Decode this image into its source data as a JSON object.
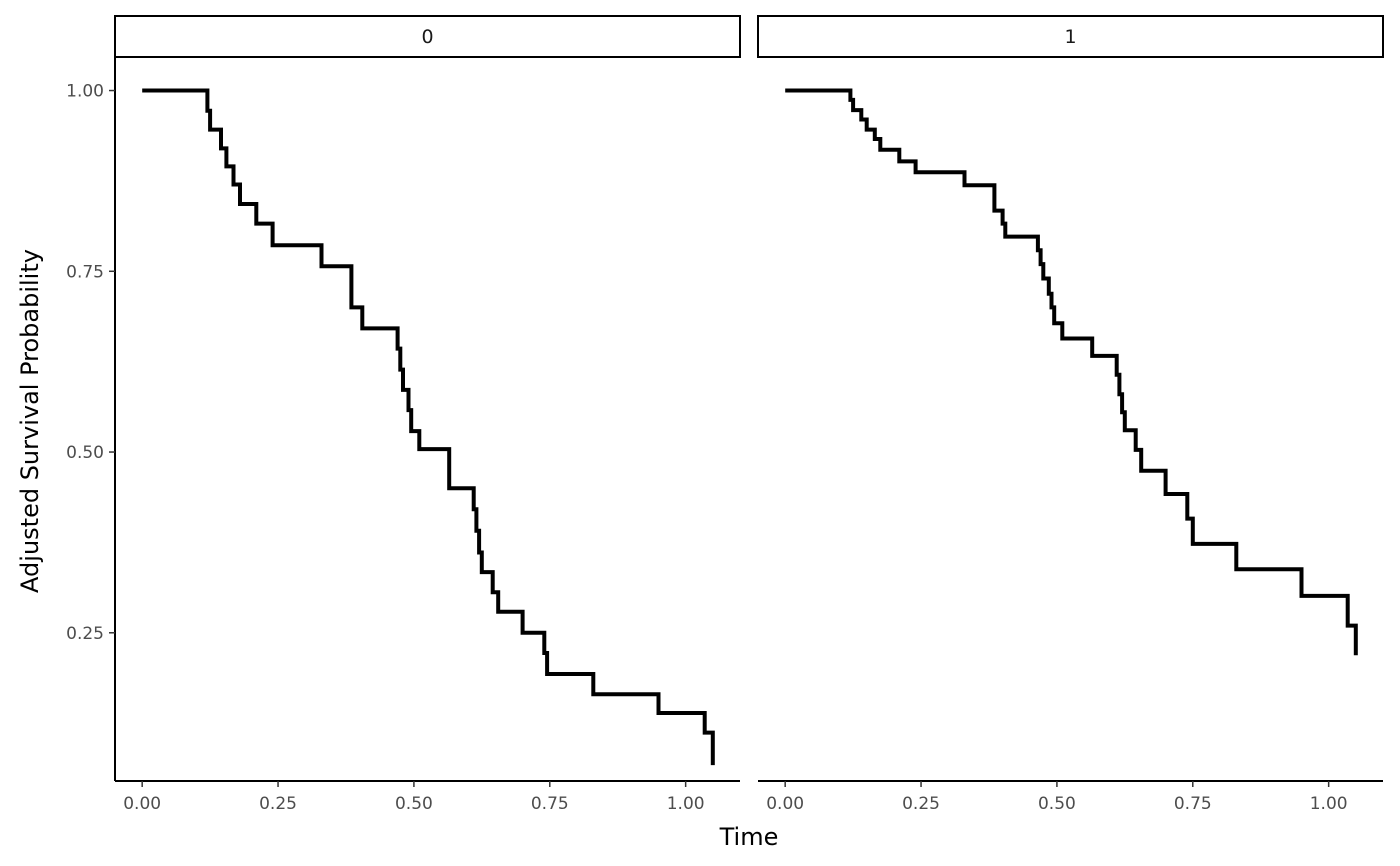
{
  "chart_data": {
    "type": "line",
    "step": true,
    "xlabel": "Time",
    "ylabel": "Adjusted Survival Probability",
    "xlim": [
      -0.05,
      1.1
    ],
    "ylim": [
      0.045,
      1.045
    ],
    "x_ticks": [
      0.0,
      0.25,
      0.5,
      0.75,
      1.0
    ],
    "x_tick_labels": [
      "0.00",
      "0.25",
      "0.50",
      "0.75",
      "1.00"
    ],
    "y_ticks": [
      0.25,
      0.5,
      0.75,
      1.0
    ],
    "y_tick_labels": [
      "0.25",
      "0.50",
      "0.75",
      "1.00"
    ],
    "grid": false,
    "line_color": "#000000",
    "panels": [
      {
        "strip_label": "0",
        "x": [
          0.0,
          0.12,
          0.125,
          0.145,
          0.155,
          0.168,
          0.18,
          0.21,
          0.24,
          0.33,
          0.385,
          0.405,
          0.47,
          0.475,
          0.48,
          0.49,
          0.495,
          0.51,
          0.565,
          0.61,
          0.615,
          0.62,
          0.625,
          0.645,
          0.655,
          0.7,
          0.74,
          0.745,
          0.83,
          0.95,
          1.035,
          1.05
        ],
        "y": [
          1.0,
          0.972,
          0.946,
          0.92,
          0.895,
          0.87,
          0.843,
          0.816,
          0.786,
          0.757,
          0.7,
          0.671,
          0.643,
          0.614,
          0.586,
          0.558,
          0.529,
          0.504,
          0.45,
          0.421,
          0.391,
          0.361,
          0.334,
          0.306,
          0.279,
          0.25,
          0.222,
          0.193,
          0.165,
          0.139,
          0.112,
          0.087
        ],
        "y_end": 0.067
      },
      {
        "strip_label": "1",
        "x": [
          0.0,
          0.12,
          0.125,
          0.14,
          0.15,
          0.165,
          0.175,
          0.21,
          0.24,
          0.33,
          0.385,
          0.4,
          0.405,
          0.465,
          0.47,
          0.475,
          0.485,
          0.49,
          0.495,
          0.51,
          0.565,
          0.61,
          0.615,
          0.62,
          0.625,
          0.645,
          0.655,
          0.7,
          0.74,
          0.75,
          0.83,
          0.95,
          1.035,
          1.05
        ],
        "y": [
          1.0,
          0.987,
          0.973,
          0.96,
          0.946,
          0.933,
          0.918,
          0.902,
          0.887,
          0.869,
          0.834,
          0.816,
          0.798,
          0.779,
          0.76,
          0.74,
          0.719,
          0.7,
          0.678,
          0.657,
          0.633,
          0.607,
          0.58,
          0.555,
          0.53,
          0.503,
          0.474,
          0.442,
          0.408,
          0.373,
          0.338,
          0.301,
          0.26,
          0.26
        ],
        "y_end": 0.219
      }
    ]
  }
}
